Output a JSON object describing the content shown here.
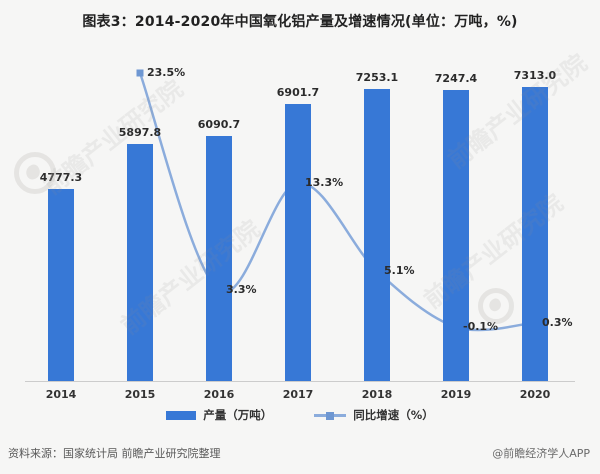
{
  "title": "图表3：2014-2020年中国氧化铝产量及增速情况(单位：万吨，%)",
  "chart_data": {
    "type": "combo-bar-line",
    "categories": [
      "2014",
      "2015",
      "2016",
      "2017",
      "2018",
      "2019",
      "2020"
    ],
    "series": [
      {
        "name": "产量（万吨）",
        "type": "bar",
        "color": "#3778D6",
        "values": [
          4777.3,
          5897.8,
          6090.7,
          6901.7,
          7253.1,
          7247.4,
          7313.0
        ],
        "value_labels": [
          "4777.3",
          "5897.8",
          "6090.7",
          "6901.7",
          "7253.1",
          "7247.4",
          "7313.0"
        ]
      },
      {
        "name": "同比增速（%）",
        "type": "line",
        "color": "#8BACDC",
        "marker_color": "#6E97D2",
        "values": [
          null,
          23.5,
          3.3,
          13.3,
          5.1,
          -0.1,
          0.3
        ],
        "value_labels": [
          "",
          "23.5%",
          "3.3%",
          "13.3%",
          "5.1%",
          "-0.1%",
          "0.3%"
        ]
      }
    ],
    "axes_hidden": true,
    "grid": false,
    "legend_position": "bottom"
  },
  "footer": {
    "source": "资料来源：国家统计局 前瞻产业研究院整理",
    "credit": "@前瞻经济学人APP"
  },
  "watermark": {
    "text": "前瞻产业研究院"
  }
}
